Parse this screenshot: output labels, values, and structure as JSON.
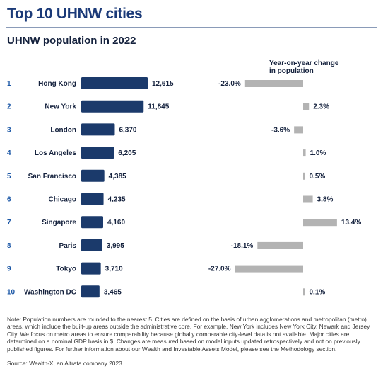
{
  "title": "Top 10 UHNW cities",
  "subtitle": "UHNW population in 2022",
  "yoy_header_line1": "Year-on-year change",
  "yoy_header_line2": "in population",
  "note": "Note: Population numbers are rounded to the nearest 5. Cities are defined on the basis of urban agglomerations and metropolitan (metro) areas, which include the built-up areas outside the administrative core. For example, New York includes New York City, Newark and Jersey City. We focus on metro areas to ensure comparability because globally comparable city-level data is not available. Major cities are determined on a nominal GDP basis in $. Changes are measured based on model inputs updated retrospectively and not on previously published figures. For further information about our Wealth and Investable Assets Model, please see the Methodology section.",
  "source": "Source: Wealth-X, an Altrata company 2023",
  "colors": {
    "population_bar": "#1b3a6b",
    "change_bar": "#b3b3b3",
    "rank": "#1b57a6",
    "title": "#1b3a78"
  },
  "chart_data": {
    "type": "bar",
    "title": "UHNW population in 2022",
    "categories": [
      "Hong Kong",
      "New York",
      "London",
      "Los Angeles",
      "San Francisco",
      "Chicago",
      "Singapore",
      "Paris",
      "Tokyo",
      "Washington DC"
    ],
    "ranks": [
      "1",
      "2",
      "3",
      "4",
      "5",
      "6",
      "7",
      "8",
      "9",
      "10"
    ],
    "series": [
      {
        "values": [
          12615,
          11845,
          6370,
          6205,
          4385,
          4235,
          4160,
          3995,
          3710,
          3465
        ],
        "labels": [
          "12,615",
          "11,845",
          "6,370",
          "6,205",
          "4,385",
          "4,235",
          "4,160",
          "3,995",
          "3,710",
          "3,465"
        ]
      },
      {
        "name": "Year-on-year change in population",
        "values": [
          -23.0,
          2.3,
          -3.6,
          1.0,
          0.5,
          3.8,
          13.4,
          -18.1,
          -27.0,
          0.1
        ],
        "labels": [
          "-23.0%",
          "2.3%",
          "-3.6%",
          "1.0%",
          "0.5%",
          "3.8%",
          "13.4%",
          "-18.1%",
          "-27.0%",
          "0.1%"
        ]
      }
    ]
  }
}
